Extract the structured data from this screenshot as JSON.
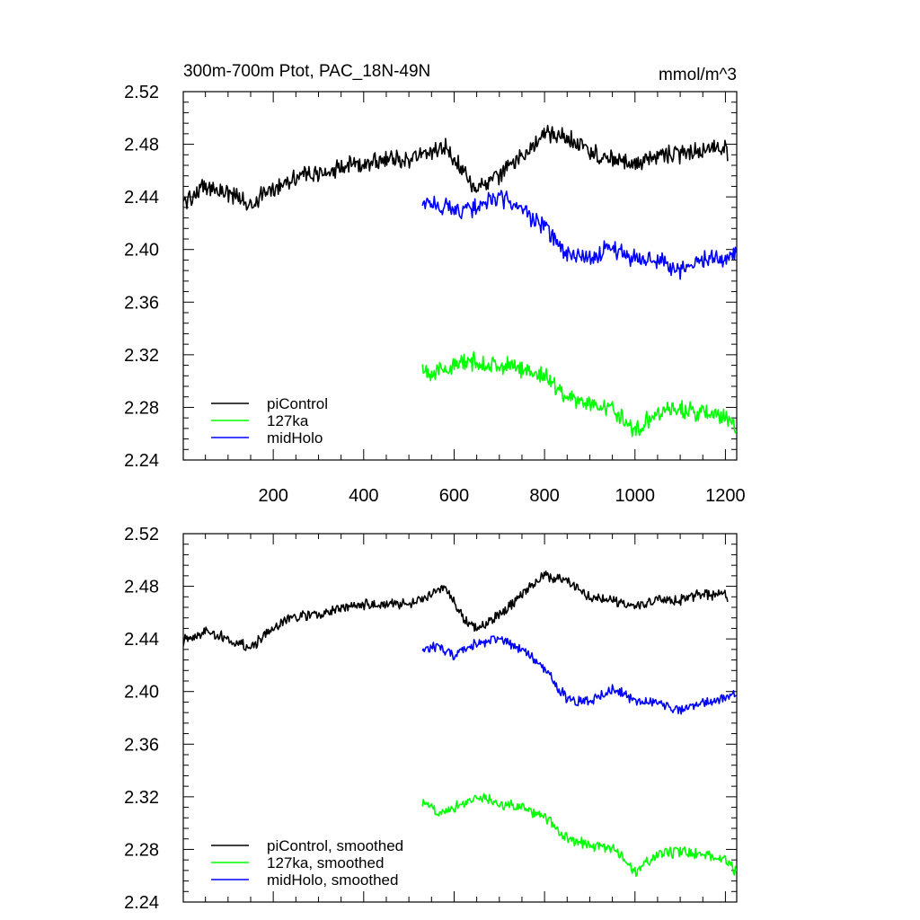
{
  "chart_data": [
    {
      "type": "line",
      "title": "300m-700m Ptot, PAC_18N-49N",
      "units": "mmol/m^3",
      "xlim": [
        1,
        1225
      ],
      "ylim": [
        2.24,
        2.52
      ],
      "yticks": [
        "2.24",
        "2.28",
        "2.32",
        "2.36",
        "2.40",
        "2.44",
        "2.48",
        "2.52"
      ],
      "xticks": [
        "200",
        "400",
        "600",
        "800",
        "1000",
        "1200"
      ],
      "show_xtick_labels": true,
      "legend_position": "bottom-left",
      "noise": 0.0055,
      "series": [
        {
          "name": "piControl",
          "color": "#000000",
          "x": [
            1,
            50,
            100,
            150,
            200,
            250,
            300,
            350,
            400,
            450,
            500,
            550,
            580,
            620,
            650,
            700,
            750,
            800,
            850,
            900,
            950,
            1000,
            1050,
            1100,
            1150,
            1200,
            1205
          ],
          "y": [
            2.436,
            2.448,
            2.443,
            2.434,
            2.447,
            2.456,
            2.457,
            2.462,
            2.466,
            2.468,
            2.469,
            2.474,
            2.479,
            2.459,
            2.446,
            2.456,
            2.472,
            2.487,
            2.486,
            2.474,
            2.468,
            2.464,
            2.472,
            2.472,
            2.476,
            2.476,
            2.471
          ]
        },
        {
          "name": "127ka",
          "color": "#00ff00",
          "x": [
            530,
            560,
            600,
            650,
            700,
            750,
            800,
            850,
            900,
            950,
            1000,
            1050,
            1100,
            1150,
            1200,
            1225
          ],
          "y": [
            2.31,
            2.306,
            2.312,
            2.315,
            2.311,
            2.31,
            2.304,
            2.288,
            2.283,
            2.279,
            2.262,
            2.277,
            2.279,
            2.275,
            2.272,
            2.263
          ]
        },
        {
          "name": "midHolo",
          "color": "#0000ff",
          "x": [
            530,
            560,
            600,
            650,
            700,
            750,
            800,
            850,
            900,
            950,
            1000,
            1050,
            1100,
            1150,
            1200,
            1225
          ],
          "y": [
            2.434,
            2.435,
            2.43,
            2.432,
            2.44,
            2.43,
            2.417,
            2.395,
            2.393,
            2.402,
            2.393,
            2.392,
            2.385,
            2.392,
            2.394,
            2.397
          ]
        }
      ]
    },
    {
      "type": "line",
      "title": "",
      "units": "",
      "xlim": [
        1,
        1225
      ],
      "ylim": [
        2.24,
        2.52
      ],
      "yticks": [
        "2.24",
        "2.28",
        "2.32",
        "2.36",
        "2.40",
        "2.44",
        "2.48",
        "2.52"
      ],
      "xticks": [
        "200",
        "400",
        "600",
        "800",
        "1000",
        "1200"
      ],
      "show_xtick_labels": false,
      "legend_position": "bottom-left",
      "noise": 0.0032,
      "series": [
        {
          "name": "piControl, smoothed",
          "color": "#000000",
          "x": [
            1,
            50,
            100,
            150,
            200,
            250,
            300,
            350,
            400,
            450,
            500,
            550,
            580,
            620,
            650,
            700,
            750,
            800,
            850,
            900,
            950,
            1000,
            1050,
            1100,
            1150,
            1200,
            1205
          ],
          "y": [
            2.439,
            2.446,
            2.44,
            2.433,
            2.448,
            2.458,
            2.458,
            2.463,
            2.466,
            2.466,
            2.466,
            2.474,
            2.479,
            2.456,
            2.448,
            2.458,
            2.474,
            2.488,
            2.484,
            2.472,
            2.468,
            2.464,
            2.47,
            2.47,
            2.474,
            2.474,
            2.47
          ]
        },
        {
          "name": "127ka, smoothed",
          "color": "#00ff00",
          "x": [
            530,
            560,
            600,
            650,
            700,
            750,
            800,
            850,
            900,
            950,
            1000,
            1050,
            1100,
            1150,
            1200,
            1225
          ],
          "y": [
            2.316,
            2.309,
            2.312,
            2.32,
            2.315,
            2.312,
            2.305,
            2.288,
            2.283,
            2.281,
            2.263,
            2.276,
            2.279,
            2.276,
            2.272,
            2.262
          ]
        },
        {
          "name": "midHolo, smoothed",
          "color": "#0000ff",
          "x": [
            530,
            560,
            600,
            650,
            700,
            750,
            800,
            850,
            900,
            950,
            1000,
            1050,
            1100,
            1150,
            1200,
            1225
          ],
          "y": [
            2.433,
            2.434,
            2.428,
            2.436,
            2.44,
            2.432,
            2.418,
            2.393,
            2.392,
            2.402,
            2.394,
            2.391,
            2.385,
            2.391,
            2.395,
            2.398
          ]
        }
      ]
    }
  ]
}
